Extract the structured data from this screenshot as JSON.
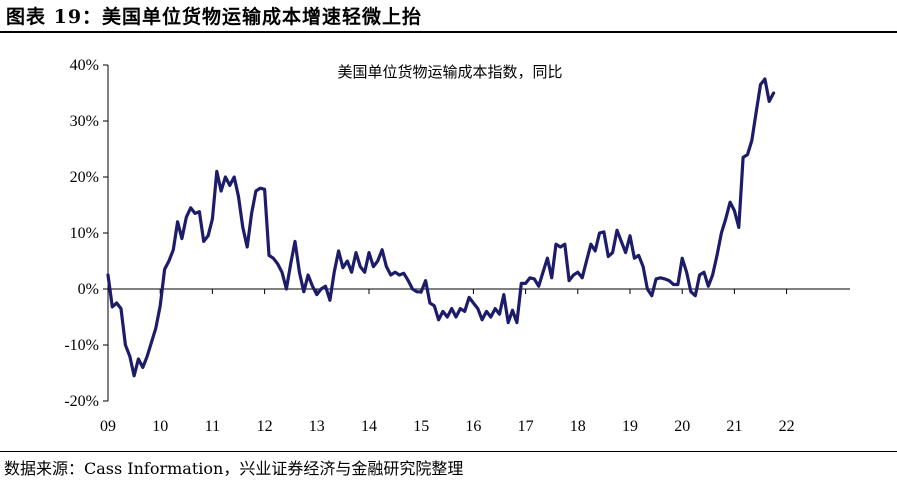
{
  "figure": {
    "title": "图表 19：美国单位货物运输成本增速轻微上抬",
    "source": "数据来源：Cass Information，兴业证券经济与金融研究院整理"
  },
  "chart_data": {
    "type": "line",
    "title": "美国单位货物运输成本指数，同比",
    "xlabel": "",
    "ylabel": "",
    "x_tick_labels": [
      "09",
      "10",
      "11",
      "12",
      "13",
      "14",
      "15",
      "16",
      "17",
      "18",
      "19",
      "20",
      "21",
      "22"
    ],
    "y_tick_labels": [
      "40%",
      "30%",
      "20%",
      "10%",
      "0%",
      "-10%",
      "-20%"
    ],
    "ylim": [
      -20,
      40
    ],
    "grid": false,
    "legend": "none",
    "color": "#1c1c6b",
    "series": [
      {
        "x_start": "2009-01",
        "frequency": "monthly",
        "values": [
          2.5,
          -3.2,
          -2.5,
          -3.5,
          -10,
          -12,
          -15.5,
          -12.5,
          -14,
          -12,
          -9.5,
          -7,
          -3,
          3.5,
          5,
          7,
          12,
          9,
          12.8,
          14.5,
          13.5,
          13.8,
          8.5,
          9.5,
          12.5,
          21,
          17.5,
          20,
          18.5,
          20,
          16.5,
          11,
          7.5,
          13.5,
          17.5,
          18,
          17.8,
          6,
          5.5,
          4.5,
          3,
          0,
          4.5,
          8.5,
          3,
          -0.5,
          2.5,
          0.5,
          -1,
          0,
          0.5,
          -2,
          3,
          6.8,
          3.8,
          5,
          3,
          6.5,
          4,
          3,
          6.5,
          4,
          5,
          7,
          4,
          2.5,
          3,
          2.5,
          2.8,
          1.5,
          0,
          -0.5,
          -0.5,
          1.5,
          -2.5,
          -3,
          -5.5,
          -4,
          -5,
          -3.5,
          -5,
          -3.5,
          -4,
          -1.5,
          -2.5,
          -3.5,
          -5.5,
          -4,
          -5,
          -3.5,
          -4.5,
          -1,
          -6,
          -3.8,
          -6,
          1,
          1,
          2,
          1.8,
          0.5,
          3,
          5.5,
          2,
          8,
          7.5,
          8,
          1.5,
          2.5,
          3,
          2,
          5,
          8,
          6.8,
          10,
          10.2,
          5.8,
          6.5,
          10.5,
          8.5,
          6.5,
          9.5,
          5.5,
          6,
          4,
          0,
          -1.2,
          1.8,
          2,
          1.8,
          1.5,
          0.8,
          0.8,
          5.5,
          3,
          -0.5,
          -1.2,
          2.5,
          3,
          0.5,
          2.5,
          6,
          10,
          12.5,
          15.5,
          14,
          11,
          23.5,
          24,
          26.5,
          31.5,
          36.5,
          37.5,
          33.5,
          35
        ]
      }
    ]
  }
}
